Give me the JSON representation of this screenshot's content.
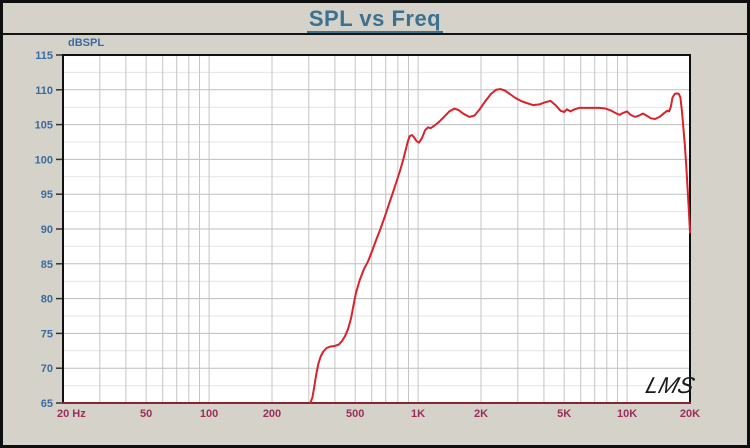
{
  "window": {
    "title": "SPL vs Freq"
  },
  "chart_data": {
    "type": "line",
    "title": "SPL vs Freq",
    "ylabel": "dBSPL",
    "x_scale": "log",
    "xlim": [
      20,
      20000
    ],
    "ylim": [
      65,
      115
    ],
    "y_major_step": 5,
    "y_minor_step": 2.5,
    "grid": true,
    "watermark": "LMS",
    "y_ticks": [
      115,
      110,
      105,
      100,
      95,
      90,
      85,
      80,
      75,
      70,
      65
    ],
    "x_ticks": [
      {
        "f": 20,
        "label": "20 Hz"
      },
      {
        "f": 50,
        "label": "50"
      },
      {
        "f": 100,
        "label": "100"
      },
      {
        "f": 200,
        "label": "200"
      },
      {
        "f": 500,
        "label": "500"
      },
      {
        "f": 1000,
        "label": "1K"
      },
      {
        "f": 2000,
        "label": "2K"
      },
      {
        "f": 5000,
        "label": "5K"
      },
      {
        "f": 10000,
        "label": "10K"
      },
      {
        "f": 20000,
        "label": "20K"
      }
    ],
    "colors": {
      "curve": "#d9222a",
      "x_label": "#9b2d5d",
      "y_label": "#3a6ba0",
      "title": "#3c7191",
      "grid_major": "#bdbdbd",
      "grid_minor": "#e4e4e4",
      "grid_vertical": "#c4c4c4",
      "axis_bottom": "#8c2330",
      "plot_border": "#101010",
      "background": "#d5d2c9",
      "plot_background": "#ffffff",
      "watermark": "#1a1a1a"
    },
    "series": [
      {
        "name": "SPL",
        "points": [
          [
            305,
            65.0
          ],
          [
            312,
            65.8
          ],
          [
            318,
            67.2
          ],
          [
            325,
            69.0
          ],
          [
            333,
            70.6
          ],
          [
            342,
            71.7
          ],
          [
            352,
            72.4
          ],
          [
            365,
            72.9
          ],
          [
            380,
            73.1
          ],
          [
            400,
            73.2
          ],
          [
            418,
            73.4
          ],
          [
            432,
            73.9
          ],
          [
            447,
            74.6
          ],
          [
            462,
            75.6
          ],
          [
            478,
            77.2
          ],
          [
            492,
            79.2
          ],
          [
            505,
            80.9
          ],
          [
            525,
            82.6
          ],
          [
            550,
            84.2
          ],
          [
            575,
            85.3
          ],
          [
            600,
            86.7
          ],
          [
            630,
            88.4
          ],
          [
            660,
            90.0
          ],
          [
            695,
            91.9
          ],
          [
            730,
            93.8
          ],
          [
            755,
            95.1
          ],
          [
            790,
            96.9
          ],
          [
            820,
            98.4
          ],
          [
            850,
            100.0
          ],
          [
            870,
            101.2
          ],
          [
            890,
            102.4
          ],
          [
            910,
            103.3
          ],
          [
            935,
            103.5
          ],
          [
            960,
            103.1
          ],
          [
            985,
            102.6
          ],
          [
            1010,
            102.4
          ],
          [
            1045,
            103.1
          ],
          [
            1080,
            104.2
          ],
          [
            1115,
            104.6
          ],
          [
            1150,
            104.5
          ],
          [
            1190,
            104.8
          ],
          [
            1260,
            105.4
          ],
          [
            1330,
            106.1
          ],
          [
            1410,
            106.9
          ],
          [
            1490,
            107.3
          ],
          [
            1560,
            107.1
          ],
          [
            1660,
            106.5
          ],
          [
            1760,
            106.1
          ],
          [
            1860,
            106.3
          ],
          [
            1960,
            107.1
          ],
          [
            2090,
            108.3
          ],
          [
            2230,
            109.4
          ],
          [
            2360,
            110.0
          ],
          [
            2480,
            110.1
          ],
          [
            2600,
            109.9
          ],
          [
            2750,
            109.4
          ],
          [
            2900,
            108.9
          ],
          [
            3100,
            108.4
          ],
          [
            3300,
            108.1
          ],
          [
            3550,
            107.8
          ],
          [
            3800,
            107.9
          ],
          [
            4050,
            108.2
          ],
          [
            4300,
            108.4
          ],
          [
            4550,
            107.8
          ],
          [
            4800,
            107.0
          ],
          [
            5000,
            106.8
          ],
          [
            5150,
            107.2
          ],
          [
            5350,
            106.9
          ],
          [
            5600,
            107.2
          ],
          [
            5900,
            107.4
          ],
          [
            6400,
            107.4
          ],
          [
            6900,
            107.4
          ],
          [
            7400,
            107.4
          ],
          [
            7900,
            107.3
          ],
          [
            8400,
            107.0
          ],
          [
            8900,
            106.6
          ],
          [
            9200,
            106.4
          ],
          [
            9600,
            106.7
          ],
          [
            10000,
            106.9
          ],
          [
            10400,
            106.4
          ],
          [
            10900,
            106.1
          ],
          [
            11400,
            106.3
          ],
          [
            11900,
            106.6
          ],
          [
            12400,
            106.3
          ],
          [
            13000,
            105.9
          ],
          [
            13600,
            105.8
          ],
          [
            14300,
            106.1
          ],
          [
            15100,
            106.7
          ],
          [
            15600,
            107.0
          ],
          [
            15900,
            106.9
          ],
          [
            16200,
            107.6
          ],
          [
            16500,
            108.9
          ],
          [
            16900,
            109.4
          ],
          [
            17300,
            109.5
          ],
          [
            17700,
            109.4
          ],
          [
            18000,
            108.9
          ],
          [
            18300,
            107.0
          ],
          [
            18600,
            104.5
          ],
          [
            18900,
            102.0
          ],
          [
            19200,
            99.0
          ],
          [
            19500,
            95.5
          ],
          [
            19750,
            92.5
          ],
          [
            20000,
            89.5
          ]
        ]
      }
    ]
  }
}
